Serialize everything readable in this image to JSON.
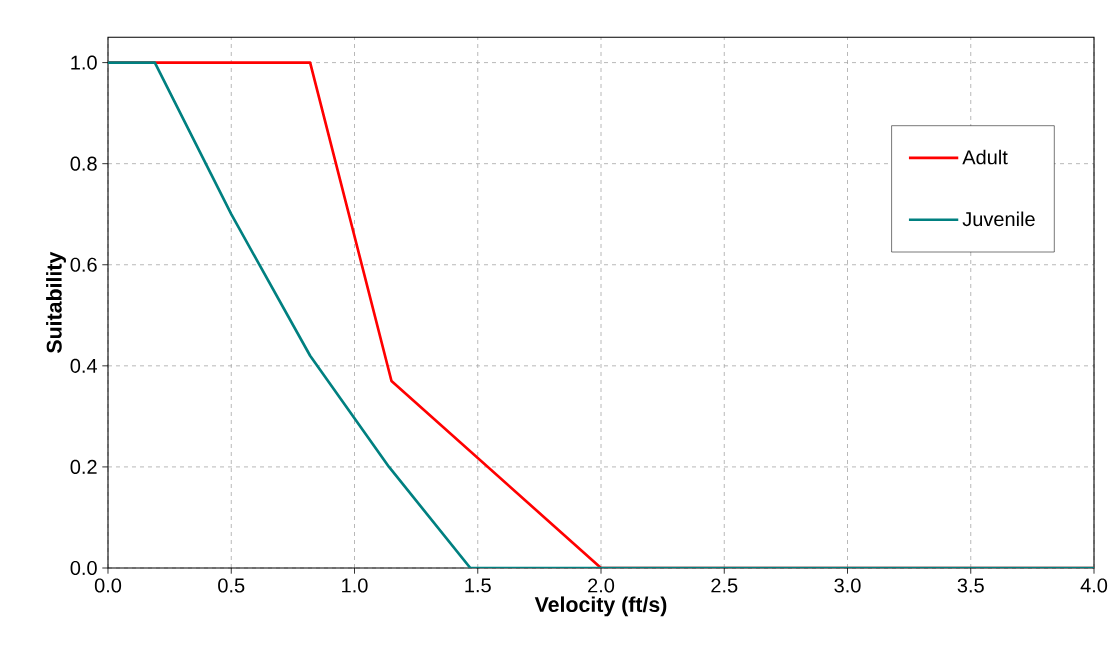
{
  "chart_data": {
    "type": "line",
    "xlabel": "Velocity (ft/s)",
    "ylabel": "Suitability",
    "series": [
      {
        "name": "Adult",
        "color": "#ff0000",
        "x": [
          0,
          0.82,
          1.15,
          2.0,
          4.0
        ],
        "values": [
          1,
          1,
          0.37,
          0,
          0
        ]
      },
      {
        "name": "Juvenile",
        "color": "#008080",
        "x": [
          0,
          0.19,
          0.5,
          0.82,
          1.14,
          1.47,
          4.0
        ],
        "values": [
          1,
          1,
          0.7,
          0.42,
          0.2,
          0,
          0
        ]
      }
    ],
    "xlim": [
      0,
      4
    ],
    "ylim": [
      0,
      1.05
    ],
    "xticks": [
      {
        "value": 0,
        "label": "0.0"
      },
      0.5,
      {
        "value": 1,
        "label": "1.0"
      },
      1.5,
      {
        "value": 2,
        "label": "2.0"
      },
      2.5,
      {
        "value": 3,
        "label": "3.0"
      },
      3.5,
      {
        "value": 4,
        "label": "4.0"
      }
    ],
    "yticks": [
      {
        "value": 0,
        "label": "0.0"
      },
      0.2,
      0.4,
      0.6,
      0.8,
      {
        "value": 1,
        "label": "1.0"
      }
    ],
    "grid": true,
    "legend": "top right",
    "marker": "none",
    "line_style": "solid"
  }
}
